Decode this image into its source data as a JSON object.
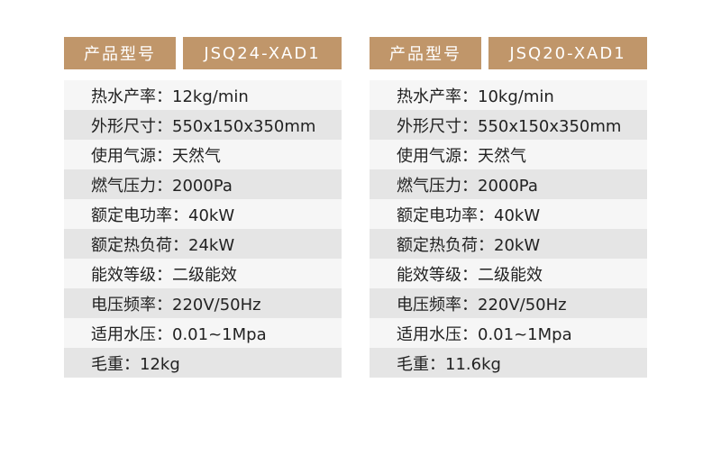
{
  "tables": [
    {
      "label": "产品型号",
      "model": "JSQ24-XAD1",
      "rows": [
        "热水产率：12kg/min",
        "外形尺寸：550x150x350mm",
        "使用气源：天然气",
        "燃气压力：2000Pa",
        "额定电功率：40kW",
        "额定热负荷：24kW",
        "能效等级：二级能效",
        "电压频率：220V/50Hz",
        "适用水压：0.01~1Mpa",
        "毛重：12kg"
      ]
    },
    {
      "label": "产品型号",
      "model": "JSQ20-XAD1",
      "rows": [
        "热水产率：10kg/min",
        "外形尺寸：550x150x350mm",
        "使用气源：天然气",
        "燃气压力：2000Pa",
        "额定电功率：40kW",
        "额定热负荷：20kW",
        "能效等级：二级能效",
        "电压频率：220V/50Hz",
        "适用水压：0.01~1Mpa",
        "毛重：11.6kg"
      ]
    }
  ],
  "colors": {
    "header": "#c0966a",
    "row_light": "#f6f6f6",
    "row_dark": "#e5e5e5"
  }
}
